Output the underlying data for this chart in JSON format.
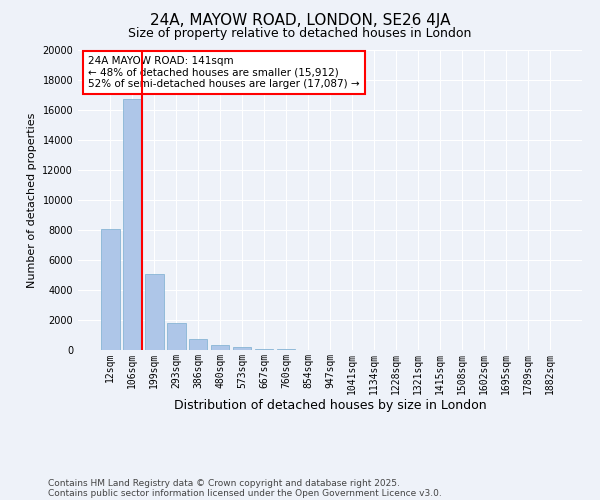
{
  "title1": "24A, MAYOW ROAD, LONDON, SE26 4JA",
  "title2": "Size of property relative to detached houses in London",
  "xlabel": "Distribution of detached houses by size in London",
  "ylabel": "Number of detached properties",
  "categories": [
    "12sqm",
    "106sqm",
    "199sqm",
    "293sqm",
    "386sqm",
    "480sqm",
    "573sqm",
    "667sqm",
    "760sqm",
    "854sqm",
    "947sqm",
    "1041sqm",
    "1134sqm",
    "1228sqm",
    "1321sqm",
    "1415sqm",
    "1508sqm",
    "1602sqm",
    "1695sqm",
    "1789sqm",
    "1882sqm"
  ],
  "values": [
    8100,
    16700,
    5100,
    1800,
    750,
    350,
    180,
    80,
    50,
    20,
    10,
    5,
    3,
    2,
    1,
    1,
    1,
    0,
    0,
    0,
    0
  ],
  "bar_color": "#aec6e8",
  "bar_edge_color": "#7aaed0",
  "vline_x": 1.45,
  "vline_color": "red",
  "annotation_text": "24A MAYOW ROAD: 141sqm\n← 48% of detached houses are smaller (15,912)\n52% of semi-detached houses are larger (17,087) →",
  "background_color": "#eef2f9",
  "grid_color": "#ffffff",
  "ylim": [
    0,
    20000
  ],
  "yticks": [
    0,
    2000,
    4000,
    6000,
    8000,
    10000,
    12000,
    14000,
    16000,
    18000,
    20000
  ],
  "footer_line1": "Contains HM Land Registry data © Crown copyright and database right 2025.",
  "footer_line2": "Contains public sector information licensed under the Open Government Licence v3.0.",
  "annotation_box_color": "#ffffff",
  "annotation_box_edge": "red",
  "title1_fontsize": 11,
  "title2_fontsize": 9,
  "ylabel_fontsize": 8,
  "xlabel_fontsize": 9,
  "tick_fontsize": 7,
  "ytick_fontsize": 7,
  "annot_fontsize": 7.5
}
